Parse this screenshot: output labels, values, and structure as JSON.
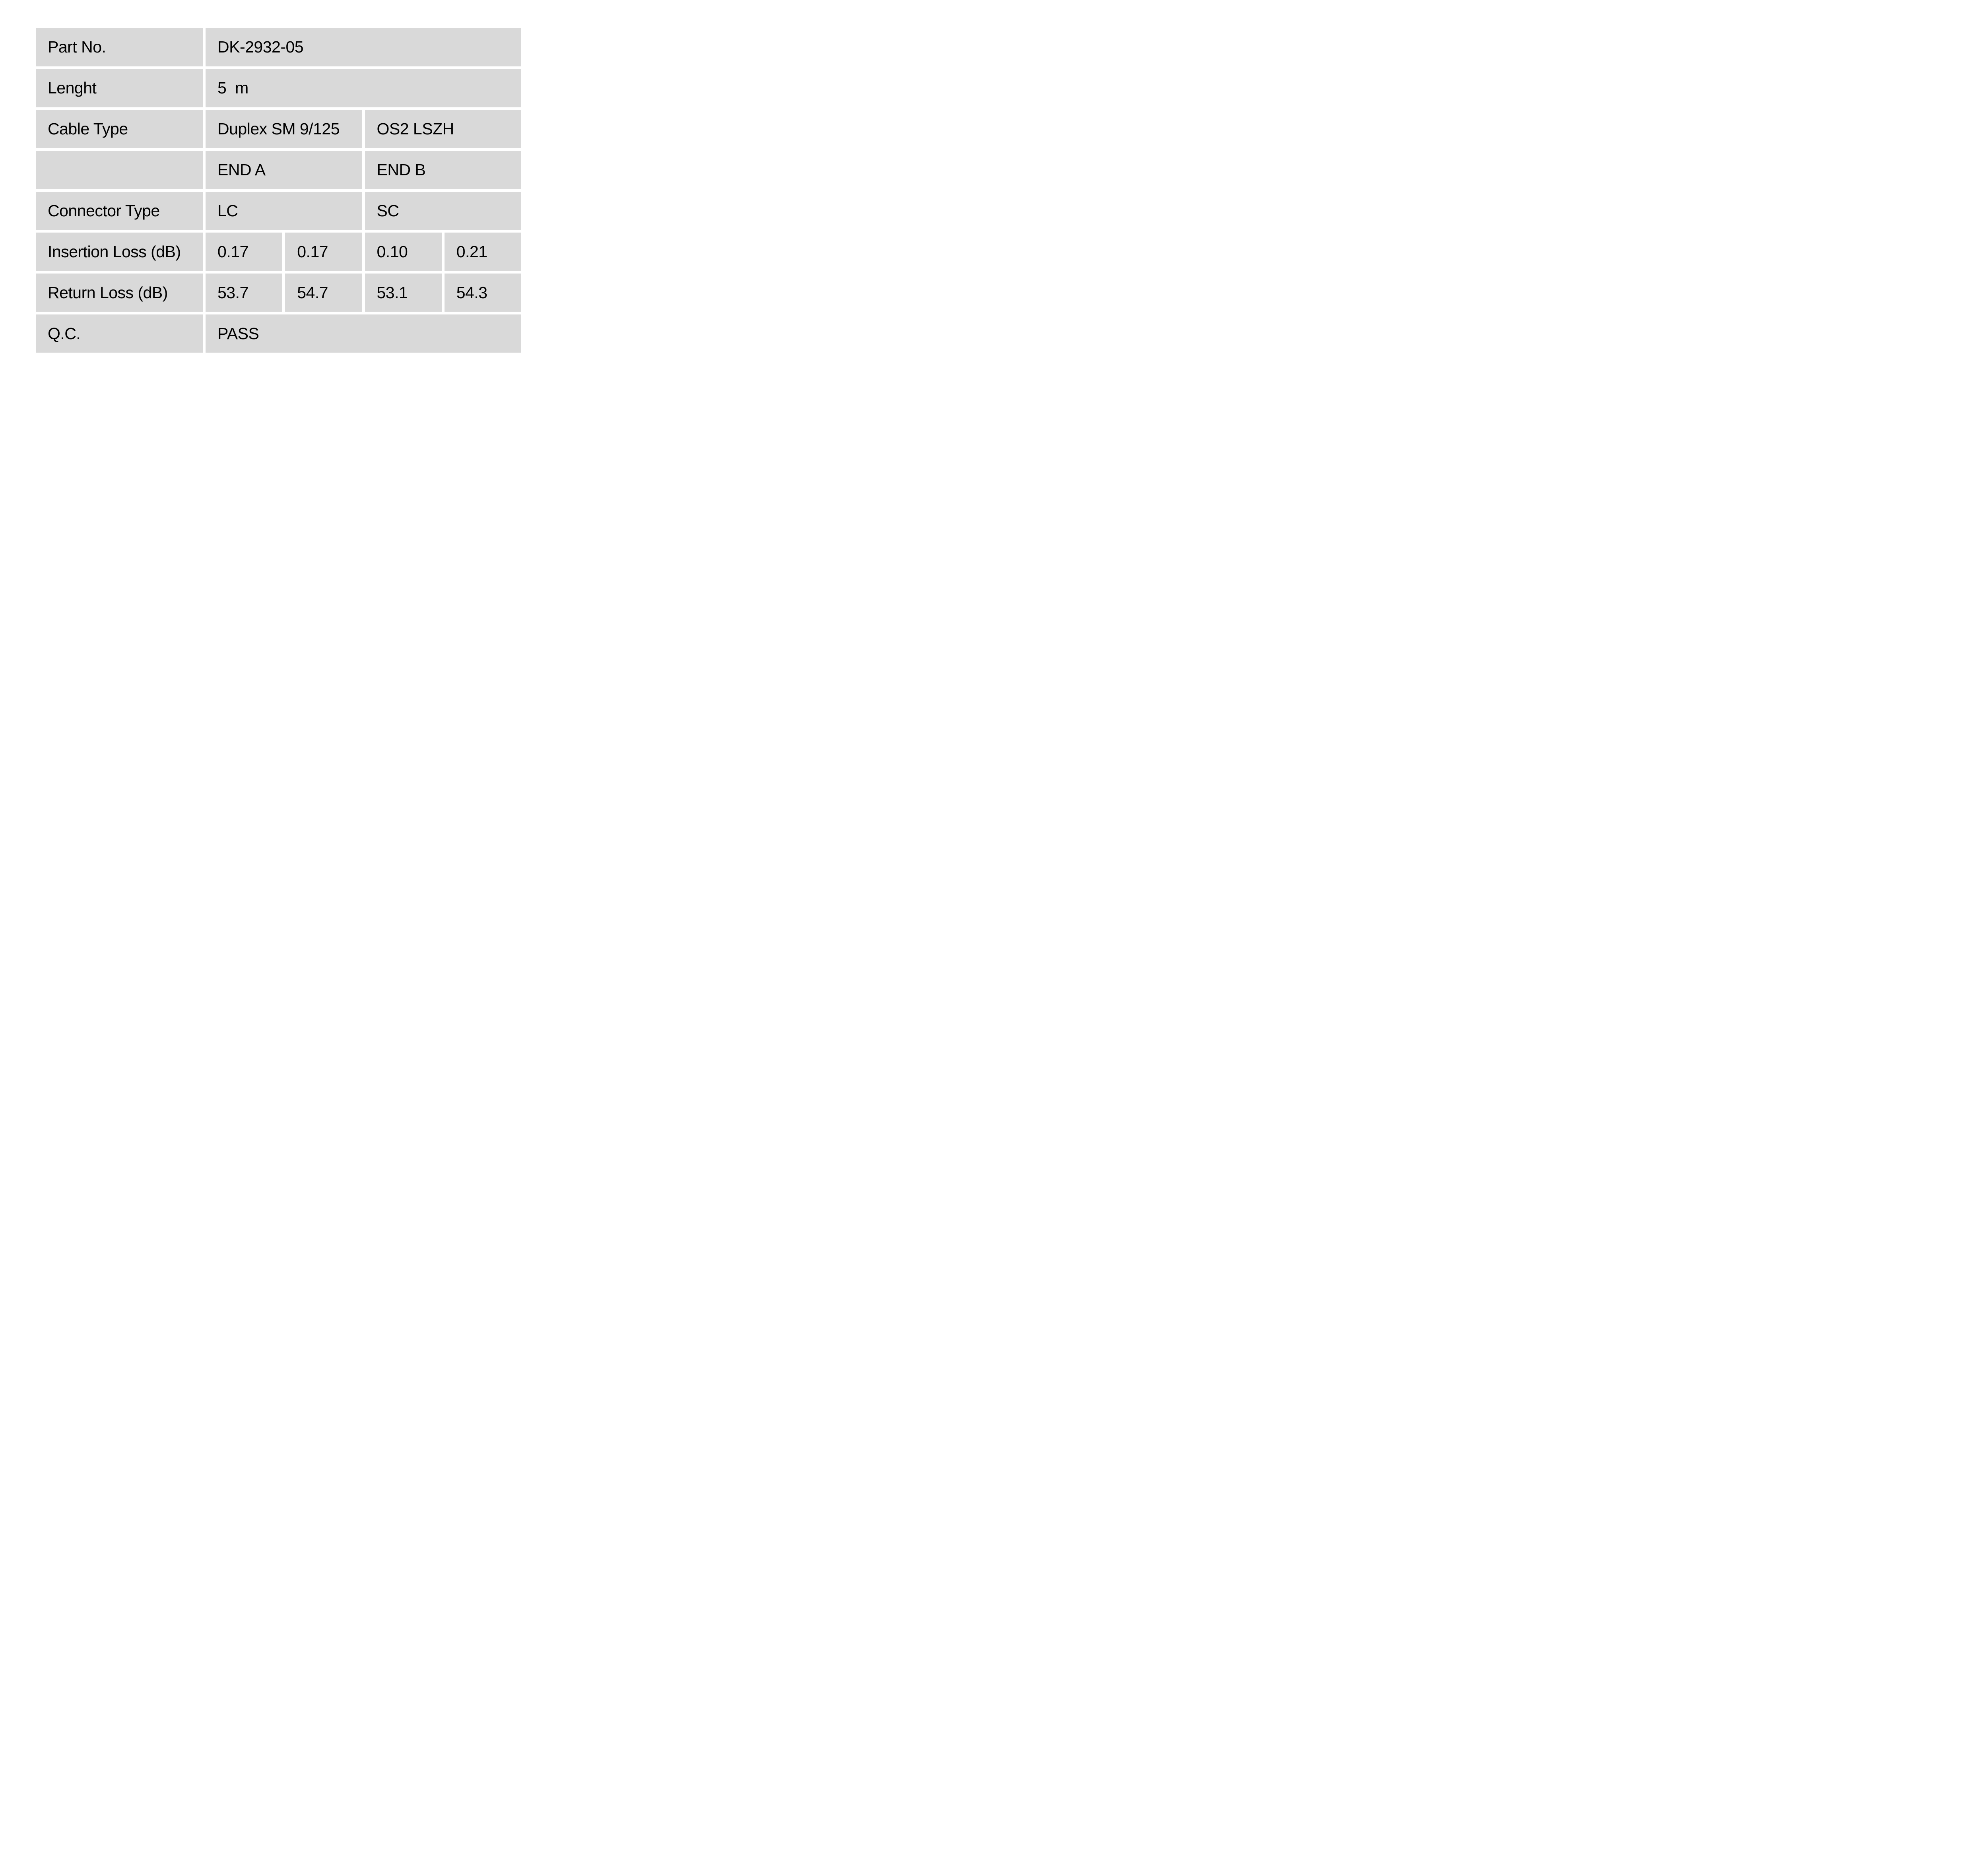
{
  "colors": {
    "page_background": "#ffffff",
    "cell_background": "#d9d9d9",
    "text": "#000000"
  },
  "table": {
    "rows": [
      {
        "label": "Part No.",
        "cells": [
          {
            "text": "DK-2932-05"
          }
        ]
      },
      {
        "label": "Lenght",
        "cells": [
          {
            "text": "5  m"
          }
        ]
      },
      {
        "label": "Cable Type",
        "cells": [
          {
            "text": "Duplex SM 9/125"
          },
          {
            "text": "OS2 LSZH"
          }
        ]
      },
      {
        "label": "",
        "cells": [
          {
            "text": "END A"
          },
          {
            "text": "END B"
          }
        ]
      },
      {
        "label": "Connector Type",
        "cells": [
          {
            "text": "LC"
          },
          {
            "text": "SC"
          }
        ]
      },
      {
        "label": "Insertion Loss (dB)",
        "cells": [
          {
            "text": "0.17"
          },
          {
            "text": "0.17"
          },
          {
            "text": "0.10"
          },
          {
            "text": "0.21"
          }
        ]
      },
      {
        "label": "Return Loss (dB)",
        "cells": [
          {
            "text": "53.7"
          },
          {
            "text": "54.7"
          },
          {
            "text": "53.1"
          },
          {
            "text": "54.3"
          }
        ]
      },
      {
        "label": "Q.C.",
        "cells": [
          {
            "text": "PASS"
          }
        ]
      }
    ]
  }
}
